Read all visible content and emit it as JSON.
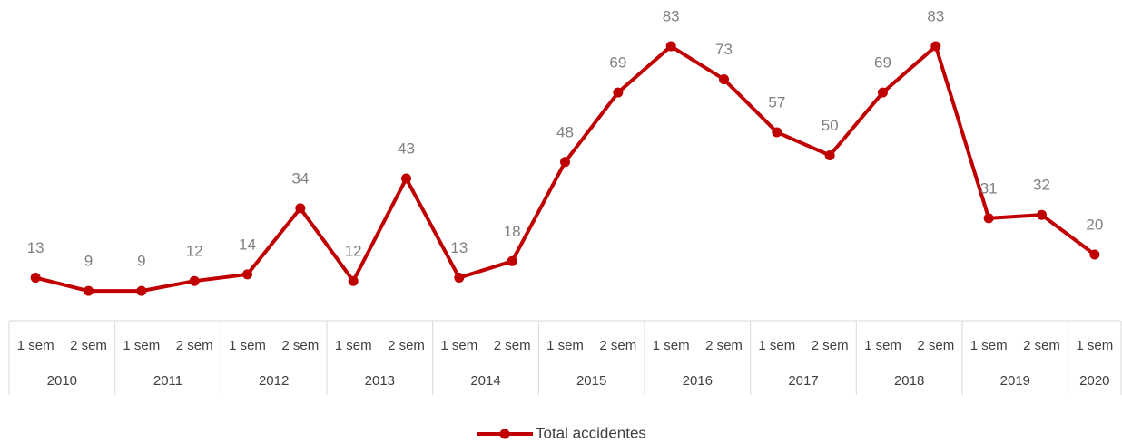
{
  "chart_data": {
    "type": "line",
    "categories": [
      "1 sem",
      "2 sem",
      "1 sem",
      "2 sem",
      "1 sem",
      "2 sem",
      "1 sem",
      "2 sem",
      "1 sem",
      "2 sem",
      "1 sem",
      "2 sem",
      "1 sem",
      "2 sem",
      "1 sem",
      "2 sem",
      "1 sem",
      "2 sem",
      "1 sem",
      "2 sem",
      "1 sem"
    ],
    "groups": [
      "2010",
      "2011",
      "2012",
      "2013",
      "2014",
      "2015",
      "2016",
      "2017",
      "2018",
      "2019",
      "2020"
    ],
    "series": [
      {
        "name": "Total accidentes",
        "color": "#c00000",
        "values": [
          13,
          9,
          9,
          12,
          14,
          34,
          12,
          43,
          13,
          18,
          48,
          69,
          83,
          73,
          57,
          50,
          69,
          83,
          31,
          32,
          20
        ]
      }
    ],
    "legend": "bottom"
  }
}
